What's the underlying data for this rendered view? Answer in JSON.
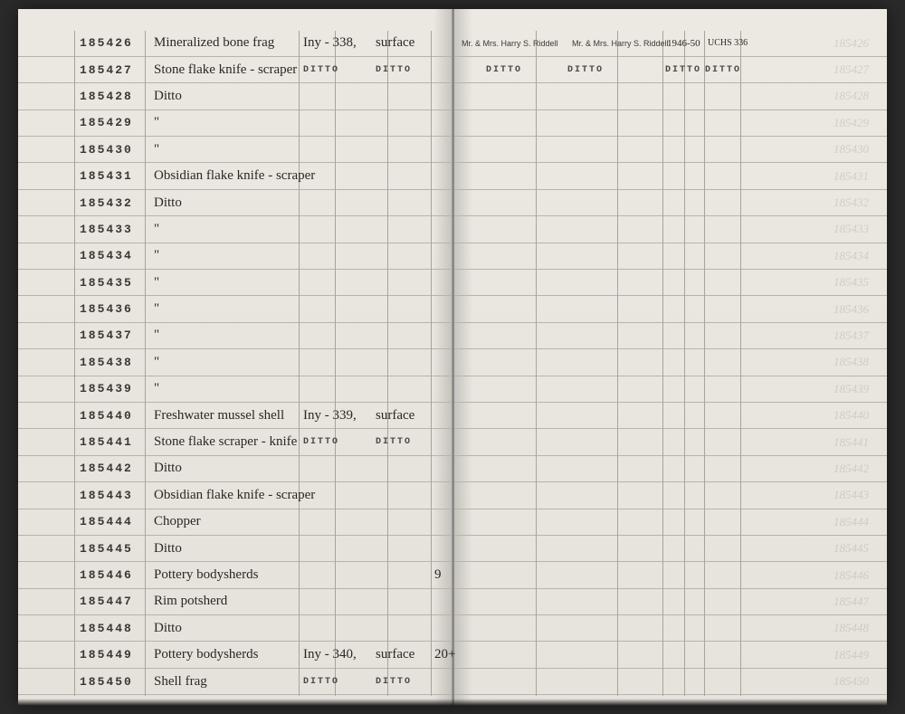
{
  "leftPage": {
    "vlines": [
      62,
      140,
      310,
      350,
      408,
      456
    ],
    "rows": [
      {
        "id": "185426",
        "desc": "Mineralized bone frag",
        "loc": "Iny - 338,",
        "surf": "surface",
        "qty": ""
      },
      {
        "id": "185427",
        "desc": "Stone flake knife - scraper",
        "loc": "DITTO",
        "surf": "DITTO",
        "qty": ""
      },
      {
        "id": "185428",
        "desc": "Ditto",
        "loc": "",
        "surf": "",
        "qty": ""
      },
      {
        "id": "185429",
        "desc": "\"",
        "loc": "",
        "surf": "",
        "qty": ""
      },
      {
        "id": "185430",
        "desc": "\"",
        "loc": "",
        "surf": "",
        "qty": ""
      },
      {
        "id": "185431",
        "desc": "Obsidian flake knife - scraper",
        "loc": "",
        "surf": "",
        "qty": ""
      },
      {
        "id": "185432",
        "desc": "Ditto",
        "loc": "",
        "surf": "",
        "qty": ""
      },
      {
        "id": "185433",
        "desc": "\"",
        "loc": "",
        "surf": "",
        "qty": ""
      },
      {
        "id": "185434",
        "desc": "\"",
        "loc": "",
        "surf": "",
        "qty": ""
      },
      {
        "id": "185435",
        "desc": "\"",
        "loc": "",
        "surf": "",
        "qty": ""
      },
      {
        "id": "185436",
        "desc": "\"",
        "loc": "",
        "surf": "",
        "qty": ""
      },
      {
        "id": "185437",
        "desc": "\"",
        "loc": "",
        "surf": "",
        "qty": ""
      },
      {
        "id": "185438",
        "desc": "\"",
        "loc": "",
        "surf": "",
        "qty": ""
      },
      {
        "id": "185439",
        "desc": "\"",
        "loc": "",
        "surf": "",
        "qty": ""
      },
      {
        "id": "185440",
        "desc": "Freshwater mussel shell",
        "loc": "Iny - 339,",
        "surf": "surface",
        "qty": ""
      },
      {
        "id": "185441",
        "desc": "Stone flake scraper - knife",
        "loc": "DITTO",
        "surf": "DITTO",
        "qty": ""
      },
      {
        "id": "185442",
        "desc": "Ditto",
        "loc": "",
        "surf": "",
        "qty": ""
      },
      {
        "id": "185443",
        "desc": "Obsidian flake knife - scraper",
        "loc": "",
        "surf": "",
        "qty": ""
      },
      {
        "id": "185444",
        "desc": "Chopper",
        "loc": "",
        "surf": "",
        "qty": ""
      },
      {
        "id": "185445",
        "desc": "Ditto",
        "loc": "",
        "surf": "",
        "qty": ""
      },
      {
        "id": "185446",
        "desc": "Pottery bodysherds",
        "loc": "",
        "surf": "",
        "qty": "9"
      },
      {
        "id": "185447",
        "desc": "Rim potsherd",
        "loc": "",
        "surf": "",
        "qty": ""
      },
      {
        "id": "185448",
        "desc": "Ditto",
        "loc": "",
        "surf": "",
        "qty": ""
      },
      {
        "id": "185449",
        "desc": "Pottery bodysherds",
        "loc": "Iny - 340,",
        "surf": "surface",
        "qty": "20+"
      },
      {
        "id": "185450",
        "desc": "Shell frag",
        "loc": "DITTO",
        "surf": "DITTO",
        "qty": ""
      }
    ]
  },
  "rightPage": {
    "vlines": [
      90,
      180,
      230,
      254,
      276,
      316
    ],
    "header": {
      "col1": "Mr. & Mrs. Harry S. Riddell",
      "col2": "Mr. & Mrs. Harry S. Riddell",
      "col3": "1946-50",
      "col4": "UCHS 336"
    },
    "dittoRow": {
      "col1": "DITTO",
      "col2": "DITTO",
      "col3": "DITTO",
      "col4": "DITTO"
    },
    "ghostIds": [
      "185426",
      "185427",
      "185428",
      "185429",
      "185430",
      "185431",
      "185432",
      "185433",
      "185434",
      "185435",
      "185436",
      "185437",
      "185438",
      "185439",
      "185440",
      "185441",
      "185442",
      "185443",
      "185444",
      "185445",
      "185446",
      "185447",
      "185448",
      "185449",
      "185450"
    ]
  }
}
